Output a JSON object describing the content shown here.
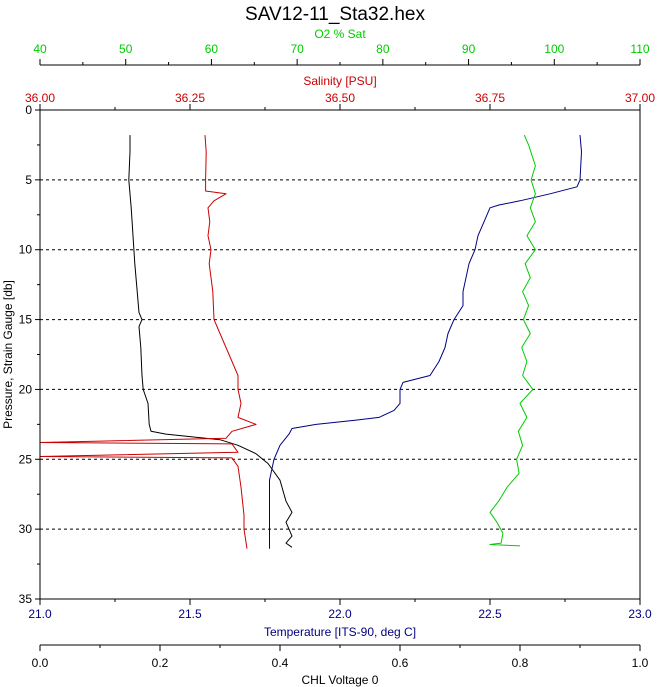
{
  "chart_data": {
    "type": "line",
    "title": "SAV12-11_Sta32.hex",
    "y_axis": {
      "label": "Pressure, Strain Gauge [db]",
      "range": [
        0,
        35
      ],
      "ticks": [
        "0",
        "5",
        "10",
        "15",
        "20",
        "25",
        "30",
        "35"
      ],
      "inverted": true,
      "gridlines": [
        5,
        10,
        15,
        20,
        25,
        30
      ],
      "color": "#000000"
    },
    "x_axes": [
      {
        "id": "o2",
        "label": "O2 % Sat",
        "position": "top-outer",
        "range": [
          40,
          110
        ],
        "ticks": [
          "40",
          "50",
          "60",
          "70",
          "80",
          "90",
          "100",
          "110"
        ],
        "color": "#00cc00"
      },
      {
        "id": "salinity",
        "label": "Salinity [PSU]",
        "position": "top-inner",
        "range": [
          36.0,
          37.0
        ],
        "ticks": [
          "36.00",
          "36.25",
          "36.50",
          "36.75",
          "37.00"
        ],
        "color": "#cc0000"
      },
      {
        "id": "temperature",
        "label": "Temperature [ITS-90, deg C]",
        "position": "bottom-inner",
        "range": [
          21.0,
          23.0
        ],
        "ticks": [
          "21.0",
          "21.5",
          "22.0",
          "22.5",
          "23.0"
        ],
        "color": "#000080"
      },
      {
        "id": "chl",
        "label": "CHL Voltage 0",
        "position": "bottom-outer",
        "range": [
          0.0,
          1.0
        ],
        "ticks": [
          "0.0",
          "0.2",
          "0.4",
          "0.6",
          "0.8",
          "1.0"
        ],
        "color": "#000000"
      }
    ],
    "series": [
      {
        "axis": "chl",
        "color": "#000000",
        "points": [
          [
            0.15,
            1.8
          ],
          [
            0.15,
            3
          ],
          [
            0.148,
            5
          ],
          [
            0.152,
            7
          ],
          [
            0.155,
            9
          ],
          [
            0.158,
            11
          ],
          [
            0.162,
            13
          ],
          [
            0.165,
            14.5
          ],
          [
            0.17,
            15
          ],
          [
            0.165,
            15.5
          ],
          [
            0.168,
            17
          ],
          [
            0.17,
            19
          ],
          [
            0.172,
            20
          ],
          [
            0.18,
            21
          ],
          [
            0.182,
            22.5
          ],
          [
            0.185,
            23
          ],
          [
            0.21,
            23.2
          ],
          [
            0.3,
            23.6
          ],
          [
            0.33,
            24
          ],
          [
            0.36,
            24.6
          ],
          [
            0.38,
            25.3
          ],
          [
            0.4,
            26.5
          ],
          [
            0.41,
            28
          ],
          [
            0.42,
            28.8
          ],
          [
            0.41,
            29.5
          ],
          [
            0.42,
            30.5
          ],
          [
            0.41,
            31
          ],
          [
            0.42,
            31.3
          ]
        ]
      },
      {
        "axis": "salinity",
        "color": "#cc0000",
        "points": [
          [
            36.275,
            1.8
          ],
          [
            36.277,
            3
          ],
          [
            36.276,
            5
          ],
          [
            36.276,
            5.8
          ],
          [
            36.31,
            6
          ],
          [
            36.29,
            6.5
          ],
          [
            36.28,
            7
          ],
          [
            36.283,
            8
          ],
          [
            36.28,
            9
          ],
          [
            36.285,
            10
          ],
          [
            36.282,
            11
          ],
          [
            36.288,
            13
          ],
          [
            36.29,
            15
          ],
          [
            36.3,
            16
          ],
          [
            36.31,
            17
          ],
          [
            36.32,
            18
          ],
          [
            36.33,
            19
          ],
          [
            36.33,
            20
          ],
          [
            36.335,
            21
          ],
          [
            36.33,
            22
          ],
          [
            36.36,
            22.5
          ],
          [
            36.32,
            23
          ],
          [
            36.31,
            23.5
          ],
          [
            36.0,
            23.8
          ],
          [
            36.32,
            23.9
          ],
          [
            36.33,
            24.5
          ],
          [
            36.0,
            24.8
          ],
          [
            36.32,
            24.9
          ],
          [
            36.33,
            25.5
          ],
          [
            36.335,
            27
          ],
          [
            36.34,
            29
          ],
          [
            36.34,
            30
          ],
          [
            36.345,
            31.4
          ]
        ]
      },
      {
        "axis": "temperature",
        "color": "#000080",
        "points": [
          [
            22.8,
            1.8
          ],
          [
            22.805,
            3
          ],
          [
            22.8,
            5
          ],
          [
            22.79,
            5.5
          ],
          [
            22.7,
            6
          ],
          [
            22.6,
            6.5
          ],
          [
            22.53,
            6.8
          ],
          [
            22.5,
            7
          ],
          [
            22.48,
            8
          ],
          [
            22.46,
            9
          ],
          [
            22.45,
            10
          ],
          [
            22.43,
            11
          ],
          [
            22.42,
            12
          ],
          [
            22.41,
            13
          ],
          [
            22.41,
            14
          ],
          [
            22.38,
            15
          ],
          [
            22.36,
            16
          ],
          [
            22.35,
            17
          ],
          [
            22.33,
            18
          ],
          [
            22.3,
            19
          ],
          [
            22.21,
            19.5
          ],
          [
            22.2,
            20
          ],
          [
            22.2,
            21
          ],
          [
            22.18,
            21.5
          ],
          [
            22.13,
            22
          ],
          [
            22.05,
            22.2
          ],
          [
            21.92,
            22.5
          ],
          [
            21.84,
            22.8
          ],
          [
            21.83,
            23.2
          ],
          [
            21.8,
            24
          ],
          [
            21.78,
            25
          ],
          [
            21.765,
            26.5
          ],
          [
            21.765,
            28
          ],
          [
            21.765,
            30
          ],
          [
            21.765,
            31.4
          ]
        ]
      },
      {
        "axis": "o2",
        "color": "#00cc00",
        "points": [
          [
            96.5,
            1.8
          ],
          [
            97,
            2.5
          ],
          [
            97.8,
            4
          ],
          [
            97.3,
            5
          ],
          [
            97.8,
            6
          ],
          [
            97.2,
            7
          ],
          [
            97.8,
            8
          ],
          [
            96.8,
            9
          ],
          [
            97.8,
            10
          ],
          [
            96.6,
            11
          ],
          [
            97.2,
            12
          ],
          [
            96.3,
            13
          ],
          [
            97,
            14
          ],
          [
            96.4,
            15
          ],
          [
            97.2,
            16
          ],
          [
            96.2,
            17
          ],
          [
            96.8,
            18
          ],
          [
            96.3,
            19
          ],
          [
            97.5,
            20
          ],
          [
            96,
            21
          ],
          [
            96.8,
            22
          ],
          [
            95.8,
            23
          ],
          [
            96.3,
            24
          ],
          [
            95.6,
            25
          ],
          [
            95.9,
            26
          ],
          [
            94.5,
            27
          ],
          [
            93.5,
            28
          ],
          [
            92.5,
            28.8
          ],
          [
            93.3,
            29.5
          ],
          [
            94,
            30.3
          ],
          [
            93.8,
            31
          ],
          [
            92.5,
            31.1
          ],
          [
            96,
            31.2
          ]
        ]
      }
    ]
  }
}
